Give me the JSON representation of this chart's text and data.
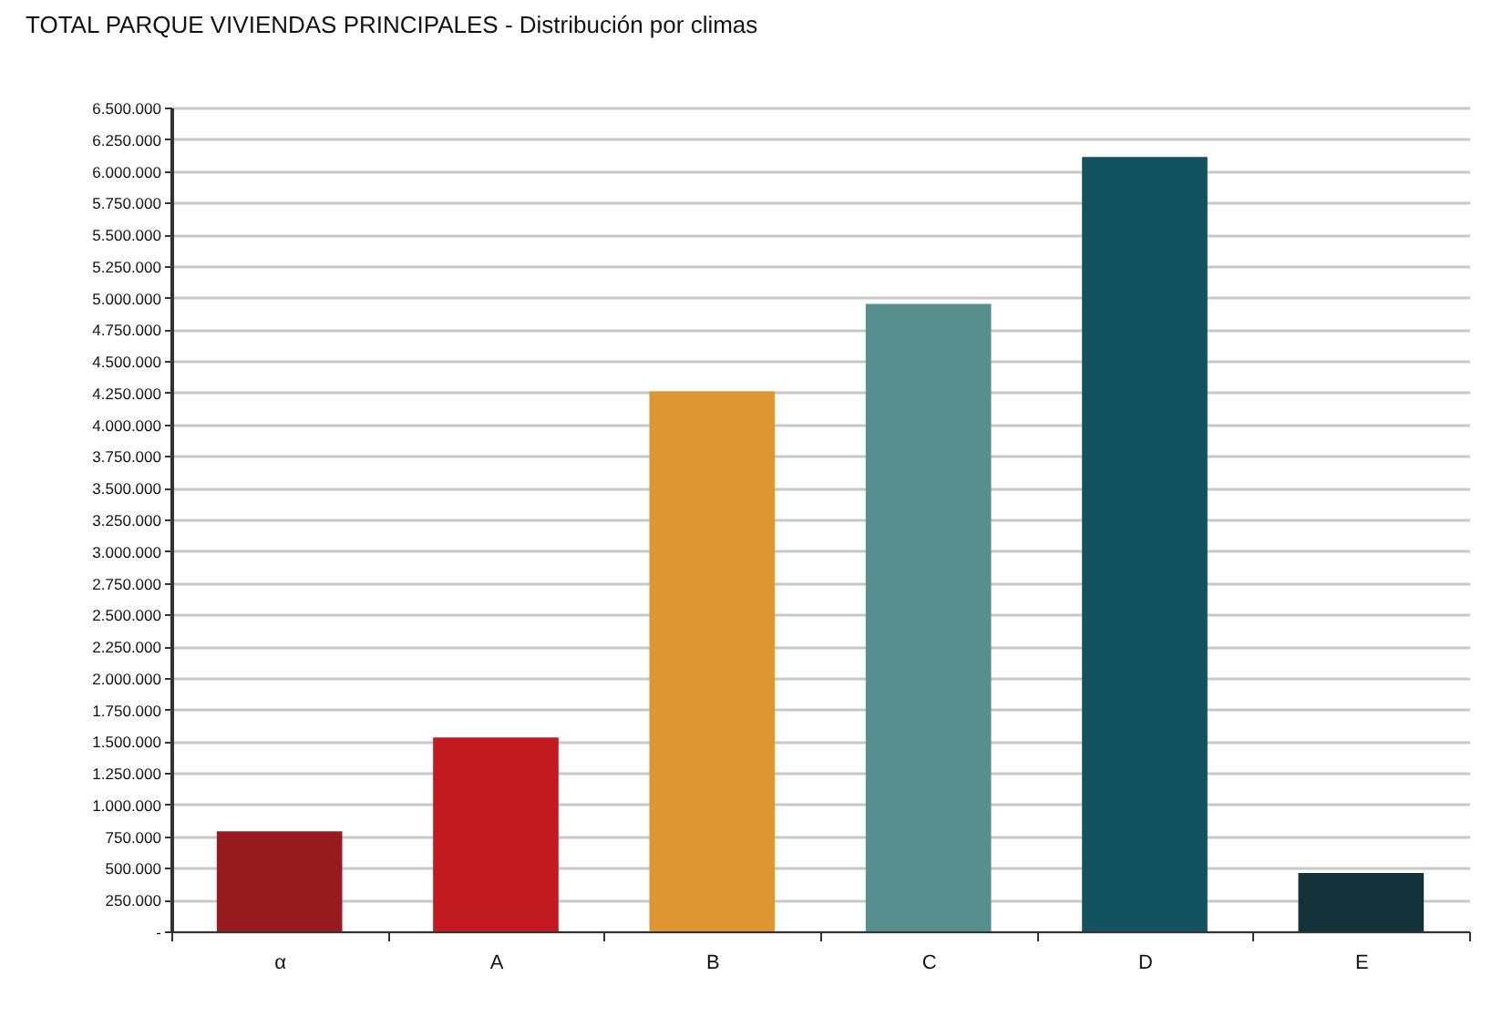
{
  "chart_data": {
    "type": "bar",
    "title": "TOTAL PARQUE VIVIENDAS PRINCIPALES   -   Distribución por climas",
    "categories": [
      "α",
      "A",
      "B",
      "C",
      "D",
      "E"
    ],
    "values": [
      790000,
      1530000,
      4260000,
      4950000,
      6110000,
      460000
    ],
    "colors": [
      "#971a1e",
      "#c11a20",
      "#dd9632",
      "#568f8e",
      "#13525f",
      "#133139"
    ],
    "ylim": [
      0,
      6500000
    ],
    "yticks": [
      {
        "value": 0,
        "label": "-"
      },
      {
        "value": 250000,
        "label": "250.000"
      },
      {
        "value": 500000,
        "label": "500.000"
      },
      {
        "value": 750000,
        "label": "750.000"
      },
      {
        "value": 1000000,
        "label": "1.000.000"
      },
      {
        "value": 1250000,
        "label": "1.250.000"
      },
      {
        "value": 1500000,
        "label": "1.500.000"
      },
      {
        "value": 1750000,
        "label": "1.750.000"
      },
      {
        "value": 2000000,
        "label": "2.000.000"
      },
      {
        "value": 2250000,
        "label": "2.250.000"
      },
      {
        "value": 2500000,
        "label": "2.500.000"
      },
      {
        "value": 2750000,
        "label": "2.750.000"
      },
      {
        "value": 3000000,
        "label": "3.000.000"
      },
      {
        "value": 3250000,
        "label": "3.250.000"
      },
      {
        "value": 3500000,
        "label": "3.500.000"
      },
      {
        "value": 3750000,
        "label": "3.750.000"
      },
      {
        "value": 4000000,
        "label": "4.000.000"
      },
      {
        "value": 4250000,
        "label": "4.250.000"
      },
      {
        "value": 4500000,
        "label": "4.500.000"
      },
      {
        "value": 4750000,
        "label": "4.750.000"
      },
      {
        "value": 5000000,
        "label": "5.000.000"
      },
      {
        "value": 5250000,
        "label": "5.250.000"
      },
      {
        "value": 5500000,
        "label": "5.500.000"
      },
      {
        "value": 5750000,
        "label": "5.750.000"
      },
      {
        "value": 6000000,
        "label": "6.000.000"
      },
      {
        "value": 6250000,
        "label": "6.250.000"
      },
      {
        "value": 6500000,
        "label": "6.500.000"
      }
    ],
    "grid": "y"
  }
}
